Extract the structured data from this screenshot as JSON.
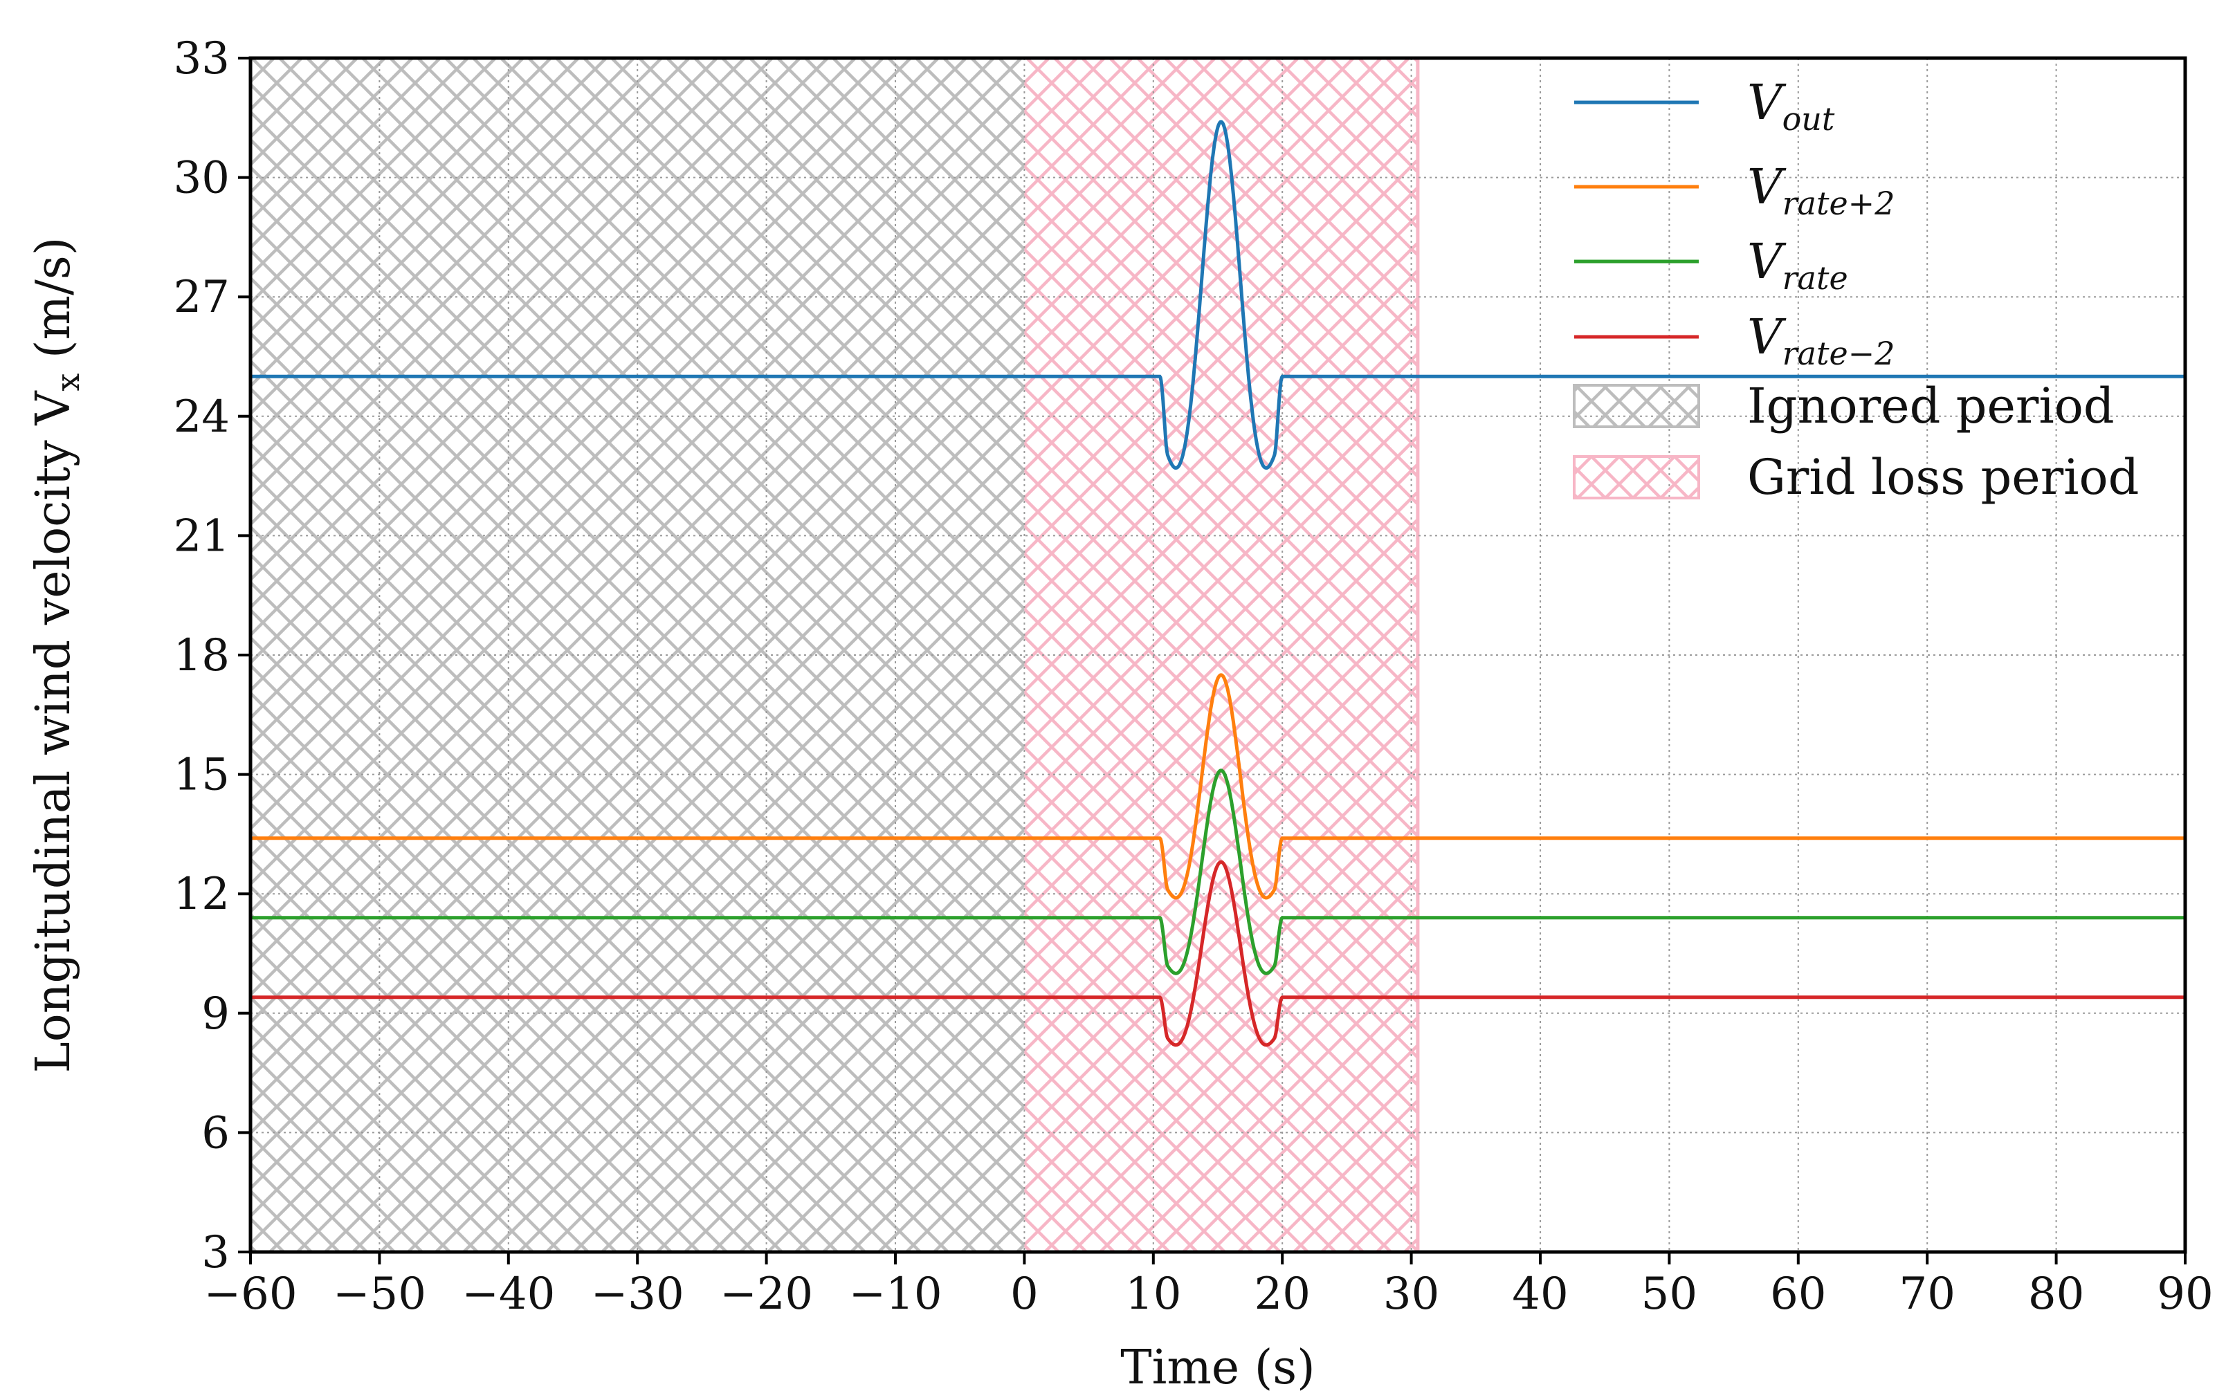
{
  "chart_data": {
    "type": "line",
    "title": "",
    "xlabel": "Time (s)",
    "ylabel": "Longitudinal wind velocity V",
    "ylabel_sub": "x",
    "ylabel_unit": " (m/s)",
    "xlim": [
      -60,
      90
    ],
    "ylim": [
      3,
      33
    ],
    "xticks": [
      -60,
      -50,
      -40,
      -30,
      -20,
      -10,
      0,
      10,
      20,
      30,
      40,
      50,
      60,
      70,
      80,
      90
    ],
    "xtick_labels": [
      "−60",
      "−50",
      "−40",
      "−30",
      "−20",
      "−10",
      "0",
      "10",
      "20",
      "30",
      "40",
      "50",
      "60",
      "70",
      "80",
      "90"
    ],
    "yticks": [
      3,
      6,
      9,
      12,
      15,
      18,
      21,
      24,
      27,
      30,
      33
    ],
    "ytick_labels": [
      "3",
      "6",
      "9",
      "12",
      "15",
      "18",
      "21",
      "24",
      "27",
      "30",
      "33"
    ],
    "grid": true,
    "legend_position": "top-right",
    "gust": {
      "start": 10.5,
      "end": 20.0,
      "center": 15.25
    },
    "series": [
      {
        "name": "V",
        "sub": "out",
        "color": "#1f77b4",
        "base": 25.0,
        "min": 22.7,
        "max": 31.4
      },
      {
        "name": "V",
        "sub": "rate+2",
        "color": "#ff7f0e",
        "base": 13.4,
        "min": 11.9,
        "max": 17.5
      },
      {
        "name": "V",
        "sub": "rate",
        "color": "#2ca02c",
        "base": 11.4,
        "min": 10.0,
        "max": 15.1
      },
      {
        "name": "V",
        "sub": "rate−2",
        "color": "#d62728",
        "base": 9.4,
        "min": 8.2,
        "max": 12.8
      }
    ],
    "regions": [
      {
        "name": "Ignored period",
        "x": [
          -60,
          0
        ],
        "color": "#bdbdbd"
      },
      {
        "name": "Grid loss period",
        "x": [
          0,
          30.5
        ],
        "color": "#f7b6c6"
      }
    ]
  }
}
